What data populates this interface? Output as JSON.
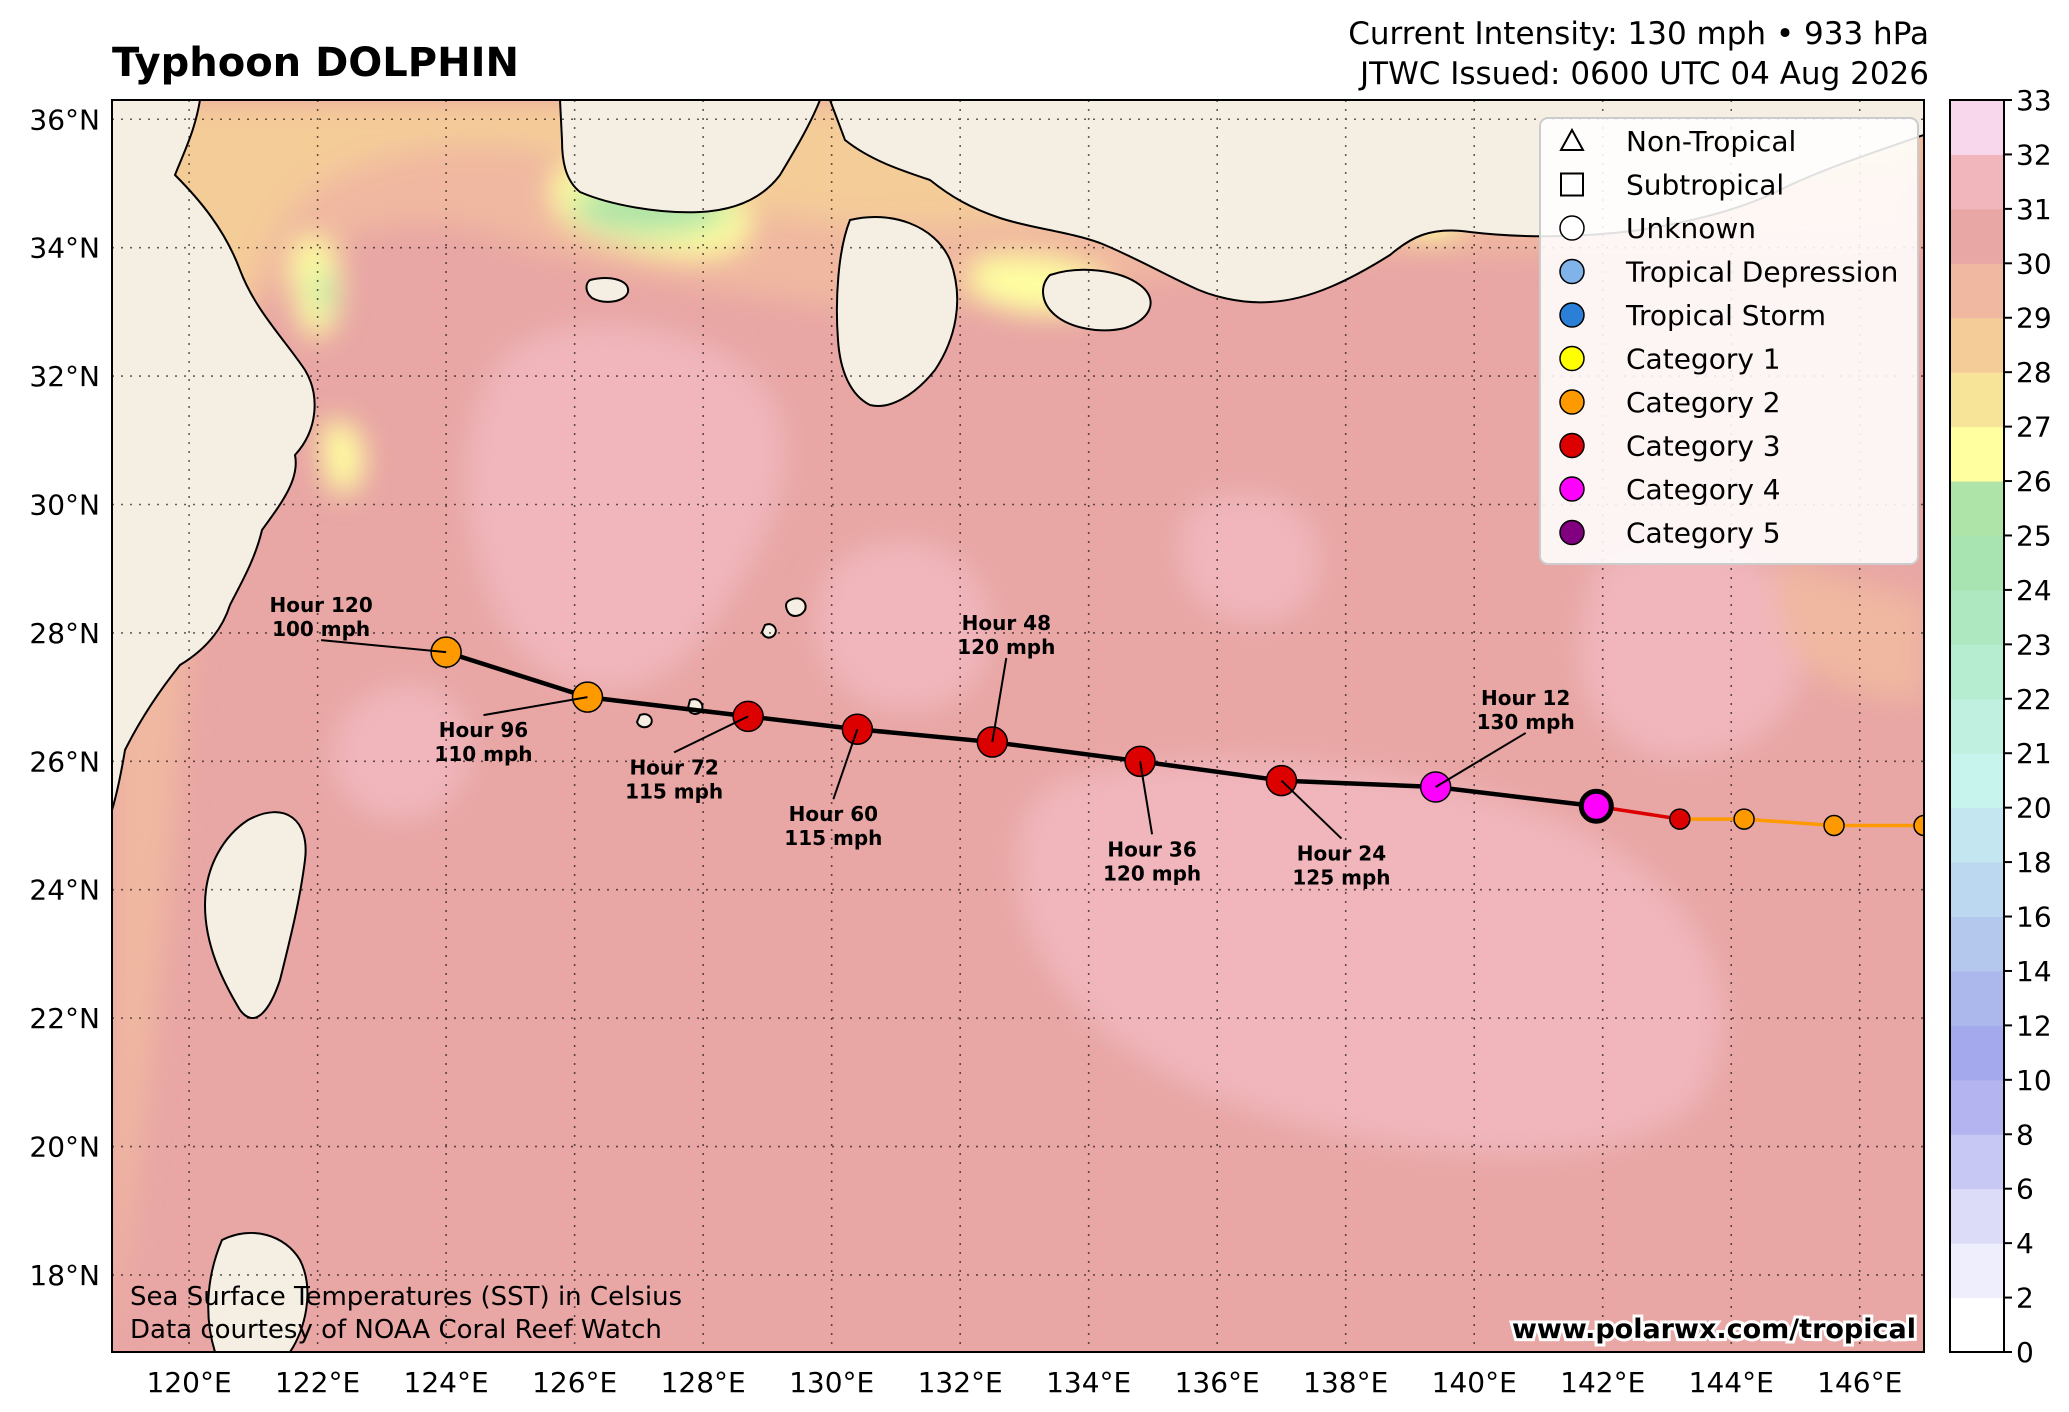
{
  "header": {
    "title": "Typhoon DOLPHIN",
    "intensity": "Current Intensity: 130 mph • 933 hPa",
    "issued": "JTWC Issued: 0600 UTC 04 Aug 2026"
  },
  "map": {
    "lon_range": [
      118.8,
      147.0
    ],
    "lat_range": [
      16.8,
      36.3
    ],
    "lon_ticks": [
      "120°E",
      "122°E",
      "124°E",
      "126°E",
      "128°E",
      "130°E",
      "132°E",
      "134°E",
      "136°E",
      "138°E",
      "140°E",
      "142°E",
      "144°E",
      "146°E"
    ],
    "lat_ticks": [
      "18°N",
      "20°N",
      "22°N",
      "24°N",
      "26°N",
      "28°N",
      "30°N",
      "32°N",
      "34°N",
      "36°N"
    ],
    "sst_label": "Sea Surface Temperatures (SST) in Celsius",
    "credit": "Data courtesy of NOAA Coral Reef Watch",
    "url": "www.polarwx.com/tropical"
  },
  "colors": {
    "non_tropical": "#ffffff",
    "subtropical": "#ffffff",
    "unknown": "#ffffff",
    "tropical_depression": "#7fb3ea",
    "tropical_storm": "#2c7fd6",
    "category_1": "#ffff00",
    "category_2": "#ff9900",
    "category_3": "#dd0000",
    "category_4": "#ff00ff",
    "category_5": "#800080"
  },
  "legend": [
    {
      "label": "Non-Tropical",
      "shape": "triangle",
      "color": "#ffffff"
    },
    {
      "label": "Subtropical",
      "shape": "square",
      "color": "#ffffff"
    },
    {
      "label": "Unknown",
      "shape": "circle",
      "color": "#ffffff"
    },
    {
      "label": "Tropical Depression",
      "shape": "circle",
      "color": "#7fb3ea"
    },
    {
      "label": "Tropical Storm",
      "shape": "circle",
      "color": "#2c7fd6"
    },
    {
      "label": "Category 1",
      "shape": "circle",
      "color": "#ffff00"
    },
    {
      "label": "Category 2",
      "shape": "circle",
      "color": "#ff9900"
    },
    {
      "label": "Category 3",
      "shape": "circle",
      "color": "#dd0000"
    },
    {
      "label": "Category 4",
      "shape": "circle",
      "color": "#ff00ff"
    },
    {
      "label": "Category 5",
      "shape": "circle",
      "color": "#800080"
    }
  ],
  "past_track": [
    {
      "lon": 147.0,
      "lat": 25.0,
      "color": "#ff9900"
    },
    {
      "lon": 145.6,
      "lat": 25.0,
      "color": "#ff9900"
    },
    {
      "lon": 144.2,
      "lat": 25.1,
      "color": "#ff9900"
    },
    {
      "lon": 143.2,
      "lat": 25.1,
      "color": "#dd0000"
    }
  ],
  "current": {
    "lon": 141.9,
    "lat": 25.3,
    "color": "#ff00ff"
  },
  "forecast": [
    {
      "hour": "Hour 12",
      "wind": "130 mph",
      "lon": 139.4,
      "lat": 25.6,
      "color": "#ff00ff"
    },
    {
      "hour": "Hour 24",
      "wind": "125 mph",
      "lon": 137.0,
      "lat": 25.7,
      "color": "#dd0000"
    },
    {
      "hour": "Hour 36",
      "wind": "120 mph",
      "lon": 134.8,
      "lat": 26.0,
      "color": "#dd0000"
    },
    {
      "hour": "Hour 48",
      "wind": "120 mph",
      "lon": 132.5,
      "lat": 26.3,
      "color": "#dd0000"
    },
    {
      "hour": "Hour 60",
      "wind": "115 mph",
      "lon": 130.4,
      "lat": 26.5,
      "color": "#dd0000"
    },
    {
      "hour": "Hour 72",
      "wind": "115 mph",
      "lon": 128.7,
      "lat": 26.7,
      "color": "#dd0000"
    },
    {
      "hour": "Hour 96",
      "wind": "110 mph",
      "lon": 126.2,
      "lat": 27.0,
      "color": "#ff9900"
    },
    {
      "hour": "Hour 120",
      "wind": "100 mph",
      "lon": 124.0,
      "lat": 27.7,
      "color": "#ff9900"
    }
  ],
  "colorbar": {
    "ticks": [
      "0",
      "2",
      "4",
      "6",
      "8",
      "10",
      "12",
      "14",
      "16",
      "18",
      "20",
      "21",
      "22",
      "23",
      "24",
      "25",
      "26",
      "27",
      "28",
      "29",
      "30",
      "31",
      "32",
      "33"
    ],
    "colors": [
      "#ffffff",
      "#eeeefc",
      "#dcdcf8",
      "#c8c8f4",
      "#b4b4f0",
      "#a4a8ec",
      "#acb8ec",
      "#b4c8ee",
      "#bcd8f0",
      "#c4e6f0",
      "#c8f4ee",
      "#bff0e0",
      "#b6ecd0",
      "#aee8c0",
      "#a8e4b2",
      "#aee4a8",
      "#ffffa0",
      "#f8e498",
      "#f4cc98",
      "#f0b8a0",
      "#e8a6a4",
      "#f0b6bc",
      "#f8d6ec"
    ]
  }
}
